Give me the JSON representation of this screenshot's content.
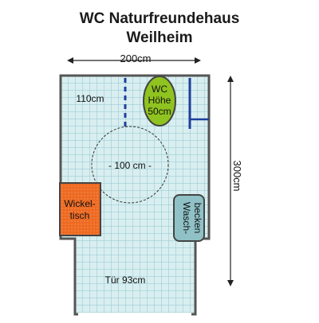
{
  "title_line1": "WC Naturfreundehaus",
  "title_line2": "Weilheim",
  "dimensions": {
    "width": "200cm",
    "height": "300cm",
    "clearance_side": "110cm",
    "turning_circle": "- 100 cm -"
  },
  "fixtures": {
    "wc": [
      "WC",
      "Höhe",
      "50cm"
    ],
    "changing_table": [
      "Wickel-",
      "tisch"
    ],
    "sink": [
      "Wasch-",
      "becken"
    ]
  },
  "door": "Tür 93cm",
  "colors": {
    "tile_fill": "#d9eef0",
    "tile_grid": "#8ec7cf",
    "wall": "#555555",
    "wc_fill": "#8fc31f",
    "changing_table_fill": "#ee6a22",
    "sink_fill": "#8fc1c6",
    "bar_blue": "#1f3f9a"
  }
}
